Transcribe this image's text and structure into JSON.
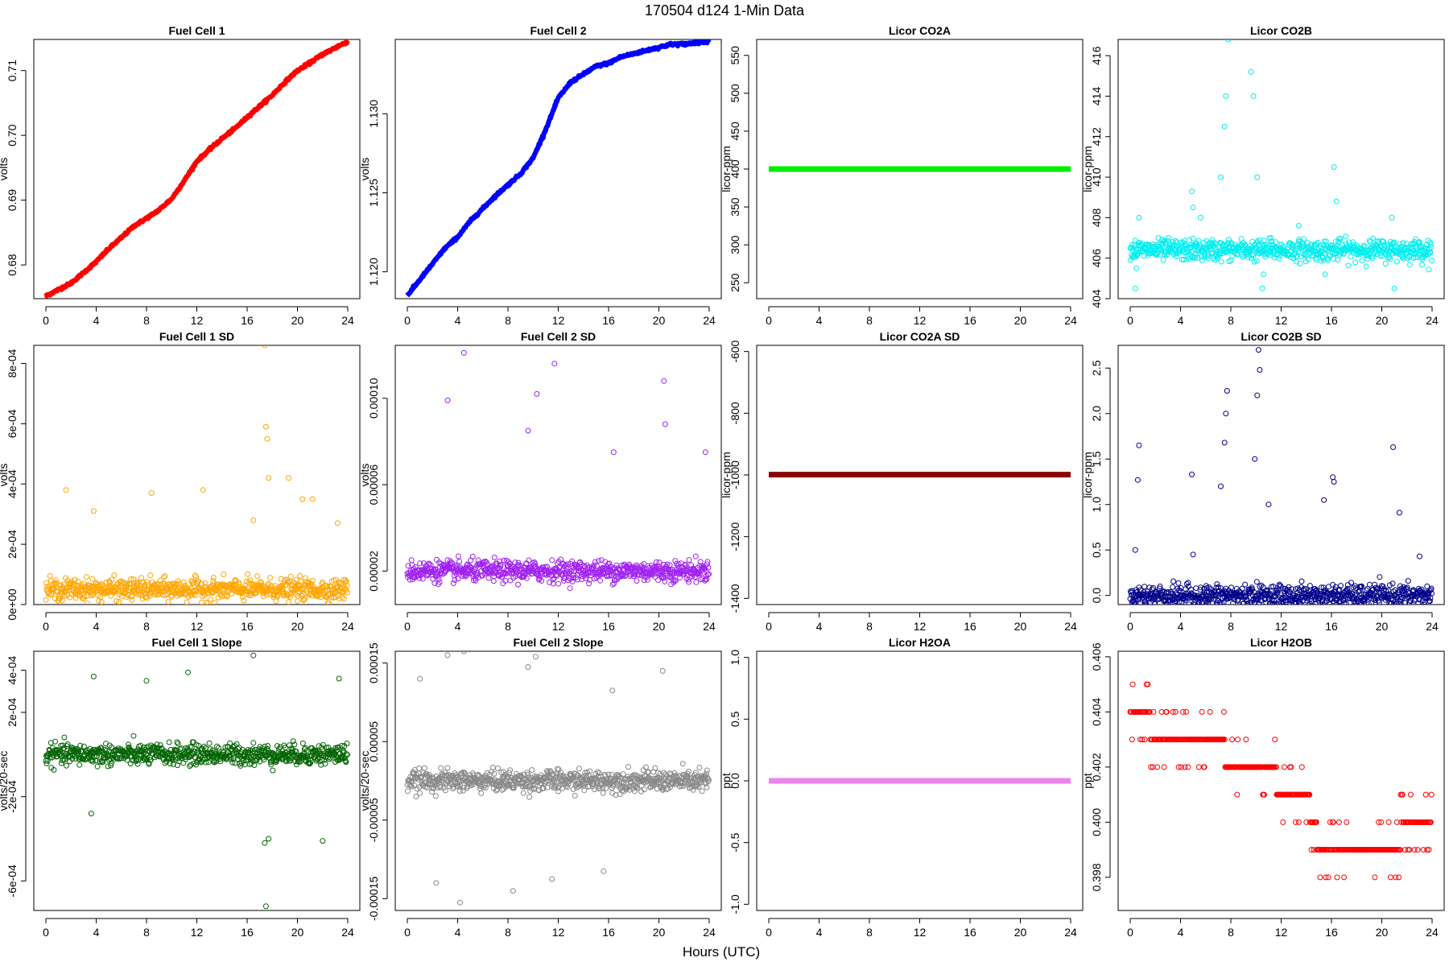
{
  "figure": {
    "title": "170504    d124    1-Min Data",
    "xlabel": "Hours (UTC)"
  },
  "chart_data": [
    {
      "type": "line",
      "title": "Fuel Cell 1",
      "xlabel": "",
      "ylabel": "volts",
      "xlim": [
        0,
        24
      ],
      "xticks": [
        "0",
        "4",
        "8",
        "12",
        "16",
        "20",
        "24"
      ],
      "ylim": [
        0.6748,
        0.7148
      ],
      "yticks": [
        0.68,
        0.69,
        0.7,
        0.71
      ],
      "ytick_labels": [
        "0.68",
        "0.69",
        "0.70",
        "0.71"
      ],
      "color": "#ff0000",
      "series": [
        {
          "x": [
            0,
            1,
            2,
            3,
            4,
            5,
            6,
            7,
            8,
            9,
            10,
            11,
            12,
            13,
            14,
            15,
            16,
            17,
            18,
            19,
            20,
            21,
            22,
            23,
            24
          ],
          "values": [
            0.6752,
            0.6762,
            0.6772,
            0.6788,
            0.6805,
            0.6825,
            0.6842,
            0.686,
            0.6872,
            0.6885,
            0.6902,
            0.693,
            0.696,
            0.6978,
            0.6995,
            0.701,
            0.7028,
            0.7045,
            0.7062,
            0.7082,
            0.71,
            0.7112,
            0.7125,
            0.7135,
            0.7145
          ]
        }
      ]
    },
    {
      "type": "line",
      "title": "Fuel Cell 2",
      "xlabel": "",
      "ylabel": "volts",
      "xlim": [
        0,
        24
      ],
      "xticks": [
        "0",
        "4",
        "8",
        "12",
        "16",
        "20",
        "24"
      ],
      "ylim": [
        1.1183,
        1.1347
      ],
      "yticks": [
        1.12,
        1.125,
        1.13
      ],
      "ytick_labels": [
        "1.120",
        "1.125",
        "1.130"
      ],
      "color": "#0000ff",
      "series": [
        {
          "x": [
            0,
            1,
            2,
            3,
            4,
            5,
            6,
            7,
            8,
            9,
            10,
            11,
            12,
            13,
            14,
            15,
            16,
            17,
            18,
            19,
            20,
            21,
            22,
            23,
            24
          ],
          "values": [
            1.1185,
            1.1195,
            1.1205,
            1.1215,
            1.1222,
            1.1232,
            1.124,
            1.1248,
            1.1255,
            1.1262,
            1.1272,
            1.129,
            1.131,
            1.132,
            1.1325,
            1.133,
            1.1332,
            1.1336,
            1.1338,
            1.134,
            1.1342,
            1.1344,
            1.1344,
            1.1345,
            1.1346
          ]
        }
      ]
    },
    {
      "type": "line",
      "title": "Licor CO2A",
      "xlabel": "",
      "ylabel": "licor-ppm",
      "xlim": [
        0,
        24
      ],
      "xticks": [
        "0",
        "4",
        "8",
        "12",
        "16",
        "20",
        "24"
      ],
      "ylim": [
        229,
        571
      ],
      "yticks": [
        250,
        300,
        350,
        400,
        450,
        500,
        550
      ],
      "ytick_labels": [
        "250",
        "300",
        "350",
        "400",
        "450",
        "500",
        "550"
      ],
      "color": "#00ee00",
      "series": [
        {
          "x": [
            0,
            24
          ],
          "values": [
            400,
            400
          ]
        }
      ]
    },
    {
      "type": "scatter",
      "title": "Licor CO2B",
      "xlabel": "",
      "ylabel": "licor-ppm",
      "xlim": [
        0,
        24
      ],
      "xticks": [
        "0",
        "4",
        "8",
        "12",
        "16",
        "20",
        "24"
      ],
      "ylim": [
        404,
        416.8
      ],
      "yticks": [
        404,
        406,
        408,
        410,
        412,
        414,
        416
      ],
      "ytick_labels": [
        "404",
        "406",
        "408",
        "410",
        "412",
        "414",
        "416"
      ],
      "color": "#00eeee",
      "series": [
        {
          "baseline": 406.4,
          "spikes": [
            [
              0.4,
              404.5
            ],
            [
              0.5,
              405.5
            ],
            [
              0.7,
              408.0
            ],
            [
              4.9,
              409.3
            ],
            [
              5.0,
              408.5
            ],
            [
              5.6,
              408.0
            ],
            [
              7.2,
              410.0
            ],
            [
              7.5,
              412.5
            ],
            [
              7.6,
              414.0
            ],
            [
              7.8,
              416.8
            ],
            [
              9.6,
              415.2
            ],
            [
              9.8,
              414.0
            ],
            [
              10.1,
              410.0
            ],
            [
              10.5,
              404.5
            ],
            [
              10.6,
              405.2
            ],
            [
              11.2,
              407.0
            ],
            [
              13.4,
              407.6
            ],
            [
              15.5,
              405.2
            ],
            [
              16.2,
              410.5
            ],
            [
              16.4,
              408.8
            ],
            [
              20.8,
              408.0
            ],
            [
              21.0,
              404.5
            ],
            [
              23.0,
              406.8
            ]
          ]
        }
      ]
    },
    {
      "type": "scatter",
      "title": "Fuel Cell 1 SD",
      "xlabel": "",
      "ylabel": "volts",
      "xlim": [
        0,
        24
      ],
      "xticks": [
        "0",
        "4",
        "8",
        "12",
        "16",
        "20",
        "24"
      ],
      "ylim": [
        0,
        0.00086
      ],
      "yticks": [
        0,
        0.0002,
        0.0004,
        0.0006,
        0.0008
      ],
      "ytick_labels": [
        "0e+00",
        "2e-04",
        "4e-04",
        "6e-04",
        "8e-04"
      ],
      "color": "#ffa500",
      "series": [
        {
          "baseline": 5e-05,
          "spikes": [
            [
              1.6,
              0.00038
            ],
            [
              3.8,
              0.00031
            ],
            [
              8.4,
              0.00037
            ],
            [
              12.5,
              0.00038
            ],
            [
              16.5,
              0.00028
            ],
            [
              17.4,
              0.00086
            ],
            [
              17.5,
              0.00059
            ],
            [
              17.6,
              0.00055
            ],
            [
              17.7,
              0.00042
            ],
            [
              19.3,
              0.00042
            ],
            [
              20.4,
              0.00035
            ],
            [
              21.2,
              0.00035
            ],
            [
              23.2,
              0.00027
            ]
          ]
        }
      ]
    },
    {
      "type": "scatter",
      "title": "Fuel Cell 2 SD",
      "xlabel": "",
      "ylabel": "volts",
      "xlim": [
        0,
        24
      ],
      "xticks": [
        "0",
        "4",
        "8",
        "12",
        "16",
        "20",
        "24"
      ],
      "ylim": [
        4.5e-06,
        0.0001245
      ],
      "yticks": [
        2e-05,
        6e-05,
        0.0001
      ],
      "ytick_labels": [
        "0.00002",
        "0.00006",
        "0.00010"
      ],
      "color": "#a020f0",
      "series": [
        {
          "baseline": 2e-05,
          "spikes": [
            [
              3.2,
              9.9e-05
            ],
            [
              4.5,
              0.000121
            ],
            [
              9.6,
              8.5e-05
            ],
            [
              10.3,
              0.000102
            ],
            [
              11.7,
              0.000116
            ],
            [
              16.4,
              7.5e-05
            ],
            [
              20.4,
              0.000108
            ],
            [
              20.5,
              8.8e-05
            ],
            [
              23.7,
              7.5e-05
            ]
          ]
        }
      ]
    },
    {
      "type": "line",
      "title": "Licor CO2A SD",
      "xlabel": "",
      "ylabel": "licor-ppm",
      "xlim": [
        0,
        24
      ],
      "xticks": [
        "0",
        "4",
        "8",
        "12",
        "16",
        "20",
        "24"
      ],
      "ylim": [
        -1420,
        -580
      ],
      "yticks": [
        -1400,
        -1200,
        -1000,
        -800,
        -600
      ],
      "ytick_labels": [
        "-1400",
        "-1200",
        "-1000",
        "-800",
        "-600"
      ],
      "color": "#8b0000",
      "series": [
        {
          "x": [
            0,
            24
          ],
          "values": [
            -999,
            -999
          ]
        }
      ]
    },
    {
      "type": "scatter",
      "title": "Licor CO2B SD",
      "xlabel": "",
      "ylabel": "licor-ppm",
      "xlim": [
        0,
        24
      ],
      "xticks": [
        "0",
        "4",
        "8",
        "12",
        "16",
        "20",
        "24"
      ],
      "ylim": [
        -0.1,
        2.75
      ],
      "yticks": [
        0,
        0.5,
        1,
        1.5,
        2,
        2.5
      ],
      "ytick_labels": [
        "0.0",
        "0.5",
        "1.0",
        "1.5",
        "2.0",
        "2.5"
      ],
      "color": "#00008b",
      "series": [
        {
          "baseline": 0.0,
          "spikes": [
            [
              0.4,
              0.5
            ],
            [
              0.6,
              1.27
            ],
            [
              0.7,
              1.65
            ],
            [
              4.9,
              1.33
            ],
            [
              5.0,
              0.45
            ],
            [
              7.2,
              1.2
            ],
            [
              7.5,
              1.68
            ],
            [
              7.6,
              2.0
            ],
            [
              7.7,
              2.25
            ],
            [
              9.9,
              1.5
            ],
            [
              10.1,
              2.2
            ],
            [
              10.2,
              2.7
            ],
            [
              10.3,
              2.48
            ],
            [
              11.0,
              1.0
            ],
            [
              15.4,
              1.05
            ],
            [
              16.1,
              1.3
            ],
            [
              16.2,
              1.25
            ],
            [
              20.9,
              1.63
            ],
            [
              21.4,
              0.91
            ],
            [
              23.0,
              0.43
            ]
          ]
        }
      ]
    },
    {
      "type": "scatter",
      "title": "Fuel Cell 1 Slope",
      "xlabel": "",
      "ylabel": "volts/20-sec",
      "xlim": [
        0,
        24
      ],
      "xticks": [
        "0",
        "4",
        "8",
        "12",
        "16",
        "20",
        "24"
      ],
      "ylim": [
        -0.00074,
        0.00049
      ],
      "yticks": [
        -0.0006,
        -0.0002,
        0.0002,
        0.0004
      ],
      "ytick_labels": [
        "-6e-04",
        "-2e-04",
        "2e-04",
        "4e-04"
      ],
      "color": "#006400",
      "series": [
        {
          "baseline": 0.0,
          "spikes": [
            [
              3.8,
              0.00037
            ],
            [
              3.6,
              -0.00028
            ],
            [
              8.0,
              0.00035
            ],
            [
              11.3,
              0.00039
            ],
            [
              16.5,
              0.00047
            ],
            [
              17.5,
              -0.00072
            ],
            [
              17.7,
              -0.0004
            ],
            [
              17.4,
              -0.00042
            ],
            [
              22.0,
              -0.00041
            ],
            [
              23.3,
              0.00036
            ]
          ]
        }
      ]
    },
    {
      "type": "scatter",
      "title": "Fuel Cell 2 Slope",
      "xlabel": "",
      "ylabel": "volts/20-sec",
      "xlim": [
        0,
        24
      ],
      "xticks": [
        "0",
        "4",
        "8",
        "12",
        "16",
        "20",
        "24"
      ],
      "ylim": [
        -0.000165,
        0.000165
      ],
      "yticks": [
        -0.00015,
        -5e-05,
        5e-05,
        0.00015
      ],
      "ytick_labels": [
        "-0.00015",
        "-0.00005",
        "0.00005",
        "0.00015"
      ],
      "color": "#888888",
      "series": [
        {
          "baseline": 0.0,
          "spikes": [
            [
              1.0,
              0.00013
            ],
            [
              3.2,
              0.00016
            ],
            [
              4.5,
              0.000165
            ],
            [
              4.2,
              -0.000155
            ],
            [
              10.2,
              0.000158
            ],
            [
              9.6,
              0.000145
            ],
            [
              2.3,
              -0.00013
            ],
            [
              8.4,
              -0.00014
            ],
            [
              11.5,
              -0.000125
            ],
            [
              15.6,
              -0.000115
            ],
            [
              16.3,
              0.000115
            ],
            [
              20.3,
              0.00014
            ]
          ]
        }
      ]
    },
    {
      "type": "line",
      "title": "Licor H2OA",
      "xlabel": "",
      "ylabel": "ppt",
      "xlim": [
        0,
        24
      ],
      "xticks": [
        "0",
        "4",
        "8",
        "12",
        "16",
        "20",
        "24"
      ],
      "ylim": [
        -1.05,
        1.05
      ],
      "yticks": [
        -1.0,
        -0.5,
        0.0,
        0.5,
        1.0
      ],
      "ytick_labels": [
        "-1.0",
        "-0.5",
        "0.0",
        "0.5",
        "1.0"
      ],
      "color": "#ee82ee",
      "series": [
        {
          "x": [
            0,
            24
          ],
          "values": [
            0,
            0
          ]
        }
      ]
    },
    {
      "type": "scatter",
      "title": "Licor H2OB",
      "xlabel": "",
      "ylabel": "ppt",
      "xlim": [
        0,
        24
      ],
      "xticks": [
        "0",
        "4",
        "8",
        "12",
        "16",
        "20",
        "24"
      ],
      "ylim": [
        0.3968,
        0.4062
      ],
      "yticks": [
        0.398,
        0.4,
        0.402,
        0.404,
        0.406
      ],
      "ytick_labels": [
        "0.398",
        "0.400",
        "0.402",
        "0.404",
        "0.406"
      ],
      "color": "#ff0000",
      "series": [
        {
          "x": [
            0,
            1,
            2,
            3,
            4,
            5,
            6,
            7,
            8,
            9,
            10,
            11,
            12,
            13,
            14,
            15,
            16,
            17,
            18,
            19,
            20,
            21,
            22,
            23,
            24
          ],
          "values": [
            0.404,
            0.404,
            0.403,
            0.403,
            0.403,
            0.403,
            0.403,
            0.403,
            0.402,
            0.402,
            0.402,
            0.402,
            0.401,
            0.401,
            0.401,
            0.399,
            0.399,
            0.399,
            0.399,
            0.399,
            0.399,
            0.399,
            0.4,
            0.4,
            0.4
          ]
        }
      ]
    }
  ]
}
